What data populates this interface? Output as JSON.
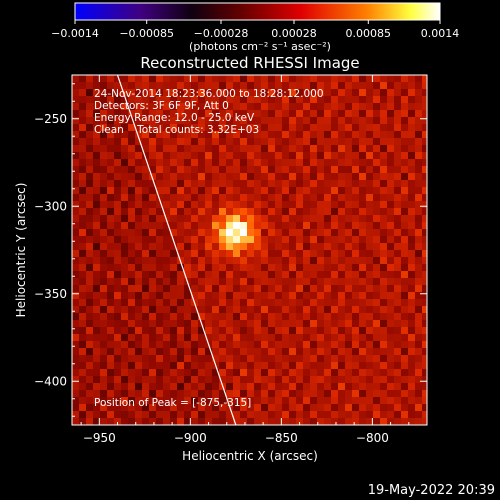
{
  "chart_data": {
    "type": "heatmap",
    "title": "Reconstructed RHESSI Image",
    "xlabel": "Heliocentric X (arcsec)",
    "ylabel": "Heliocentric Y (arcsec)",
    "xlim": [
      -965,
      -770
    ],
    "ylim": [
      -425,
      -225
    ],
    "x_ticks": [
      -950,
      -900,
      -850,
      -800
    ],
    "y_ticks": [
      -250,
      -300,
      -350,
      -400
    ],
    "x_tick_labels": [
      "−950",
      "−900",
      "−850",
      "−800"
    ],
    "y_tick_labels": [
      "−250",
      "−300",
      "−350",
      "−400"
    ],
    "colorbar": {
      "range": [
        -0.0014,
        0.0014
      ],
      "ticks": [
        -0.0014,
        -0.00085,
        -0.00028,
        0.00028,
        0.00085,
        0.0014
      ],
      "tick_labels": [
        "−0.0014",
        "−0.00085",
        "−0.00028",
        "0.00028",
        "0.00085",
        "0.0014"
      ],
      "unit_label": "(photons cm⁻² s⁻¹ asec⁻²)",
      "colormap": [
        "#0000ff",
        "#400080",
        "#000000",
        "#800000",
        "#ff0000",
        "#ff8000",
        "#ffff00",
        "#ffffff"
      ]
    },
    "peak": {
      "x": -875,
      "y": -315,
      "value": 0.0014
    },
    "limb_line": [
      [
        -940,
        -225
      ],
      [
        -875,
        -425
      ]
    ],
    "annotations": [
      "24-Nov-2014 18:23:36.000 to 18:28:12.000",
      "Detectors: 3F 6F 9F, Att 0",
      "Energy Range: 12.0 - 25.0 keV",
      "Clean    Total counts: 3.32E+03",
      "Position of Peak = [-875,-315]"
    ],
    "grid": false
  },
  "footer": {
    "timestamp": "19-May-2022 20:39"
  }
}
